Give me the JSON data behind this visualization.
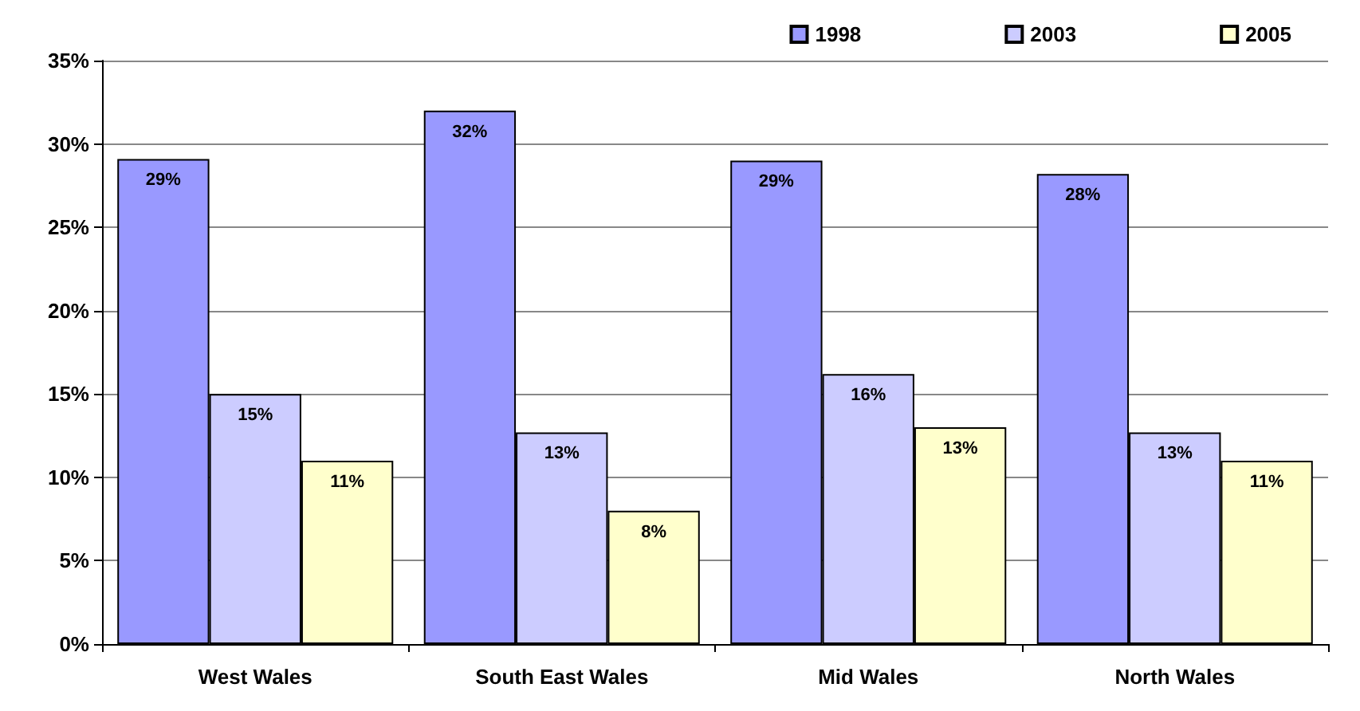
{
  "chart_data": {
    "type": "bar",
    "categories": [
      "West Wales",
      "South East Wales",
      "Mid Wales",
      "North Wales"
    ],
    "series": [
      {
        "name": "1998",
        "color": "#9999ff",
        "values": [
          29.1,
          32,
          29,
          28.2
        ],
        "value_labels": [
          "29%",
          "32%",
          "29%",
          "28%"
        ]
      },
      {
        "name": "2003",
        "color": "#ccccff",
        "values": [
          15,
          12.7,
          16.2,
          12.7
        ],
        "value_labels": [
          "15%",
          "13%",
          "16%",
          "13%"
        ]
      },
      {
        "name": "2005",
        "color": "#ffffcc",
        "values": [
          11,
          8,
          13,
          11
        ],
        "value_labels": [
          "11%",
          "8%",
          "13%",
          "11%"
        ]
      }
    ],
    "ylim": [
      0,
      35
    ],
    "yticks": [
      {
        "value": 0,
        "label": "0%"
      },
      {
        "value": 5,
        "label": "5%"
      },
      {
        "value": 10,
        "label": "10%"
      },
      {
        "value": 15,
        "label": "15%"
      },
      {
        "value": 20,
        "label": "20%"
      },
      {
        "value": 25,
        "label": "25%"
      },
      {
        "value": 30,
        "label": "30%"
      },
      {
        "value": 35,
        "label": "35%"
      }
    ],
    "grid": "y",
    "legend": "top right"
  }
}
